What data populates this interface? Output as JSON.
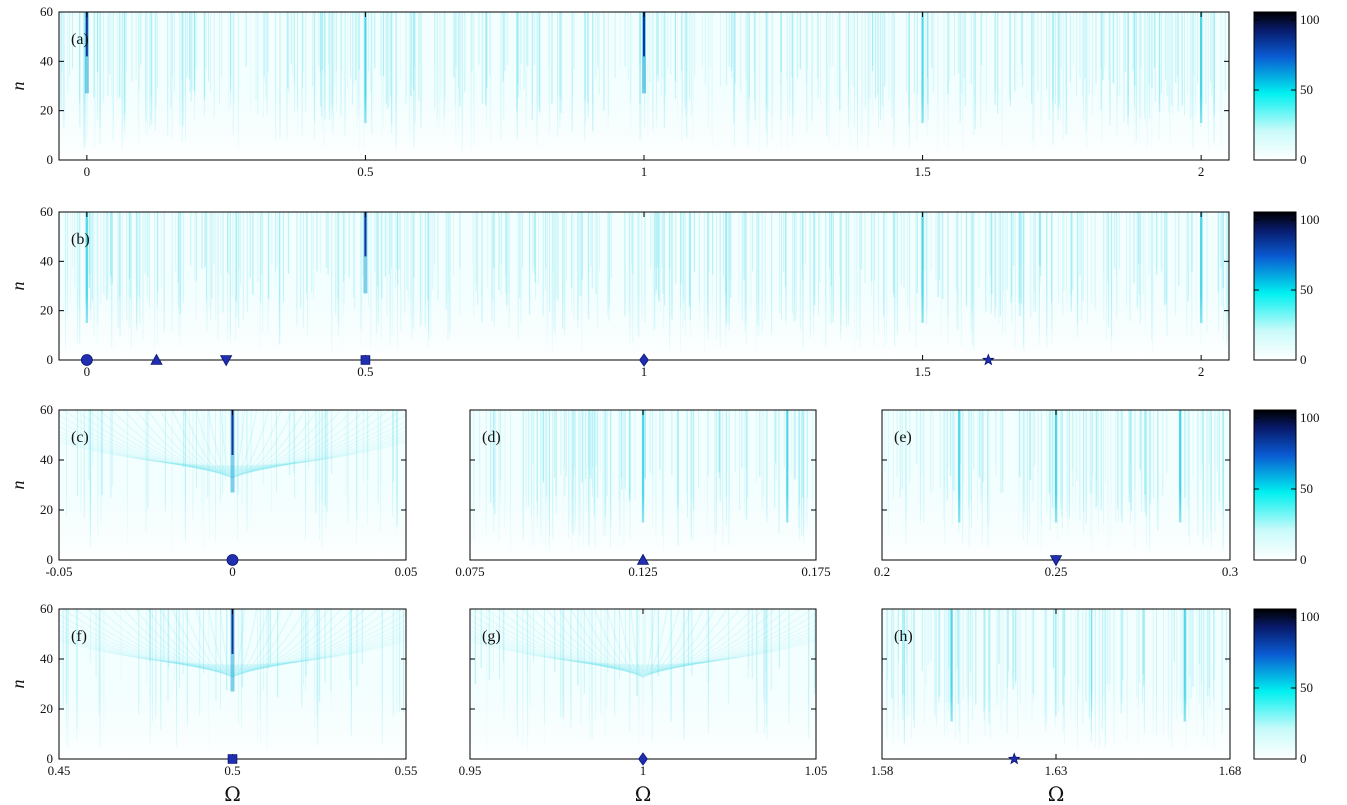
{
  "chart_data": {
    "type": "heatmap",
    "colormap": {
      "stops": [
        "#ffffff",
        "#00f0f0",
        "#0a3cc8",
        "#000000"
      ],
      "ticks": [
        "0",
        "50",
        "100"
      ]
    },
    "panels": [
      {
        "label": "(a)",
        "xlim": [
          -0.05,
          2.05
        ],
        "ylim": [
          0,
          60
        ],
        "xticks": [
          0,
          0.5,
          1,
          1.5,
          2
        ],
        "xtick_labels": [
          "0",
          "0.5",
          "1",
          "1.5",
          "2"
        ],
        "yticks": [
          0,
          20,
          40,
          60
        ],
        "ytick_labels": [
          "0",
          "20",
          "40",
          "60"
        ],
        "ylabel": "n",
        "xlabel": "",
        "dark_lines": [
          0,
          1
        ],
        "cyan_lines": [
          0.5,
          1.5,
          2
        ],
        "dense_lines": true,
        "markers": []
      },
      {
        "label": "(b)",
        "xlim": [
          -0.05,
          2.05
        ],
        "ylim": [
          0,
          60
        ],
        "xticks": [
          0,
          0.5,
          1,
          1.5,
          2
        ],
        "xtick_labels": [
          "0",
          "0.5",
          "1",
          "1.5",
          "2"
        ],
        "yticks": [
          0,
          20,
          40,
          60
        ],
        "ytick_labels": [
          "0",
          "20",
          "40",
          "60"
        ],
        "ylabel": "n",
        "xlabel": "",
        "dark_lines": [
          0.5
        ],
        "cyan_lines": [
          0,
          2,
          1.5
        ],
        "dense_lines": true,
        "markers": [
          {
            "shape": "circle",
            "x": 0
          },
          {
            "shape": "triangle-up",
            "x": 0.125
          },
          {
            "shape": "triangle-down",
            "x": 0.25
          },
          {
            "shape": "square",
            "x": 0.5
          },
          {
            "shape": "diamond",
            "x": 1
          },
          {
            "shape": "star",
            "x": 1.618
          }
        ]
      },
      {
        "label": "(c)",
        "xlim": [
          -0.05,
          0.05
        ],
        "ylim": [
          0,
          60
        ],
        "xticks": [
          -0.05,
          0,
          0.05
        ],
        "xtick_labels": [
          "-0.05",
          "0",
          "0.05"
        ],
        "yticks": [
          0,
          20,
          40,
          60
        ],
        "ytick_labels": [
          "0",
          "20",
          "40",
          "60"
        ],
        "ylabel": "n",
        "xlabel": "",
        "dark_lines": [
          0
        ],
        "cyan_lines": [],
        "dense_lines": false,
        "markers": [
          {
            "shape": "circle",
            "x": 0
          }
        ]
      },
      {
        "label": "(d)",
        "xlim": [
          0.075,
          0.175
        ],
        "ylim": [
          0,
          60
        ],
        "xticks": [
          0.075,
          0.125,
          0.175
        ],
        "xtick_labels": [
          "0.075",
          "0.125",
          "0.175"
        ],
        "yticks": [
          20,
          40,
          60
        ],
        "ytick_labels": [],
        "ylabel": "",
        "xlabel": "",
        "dark_lines": [],
        "cyan_lines": [
          0.125,
          0.1667
        ],
        "dense_lines": true,
        "markers": [
          {
            "shape": "triangle-up",
            "x": 0.125
          }
        ]
      },
      {
        "label": "(e)",
        "xlim": [
          0.2,
          0.3
        ],
        "ylim": [
          0,
          60
        ],
        "xticks": [
          0.2,
          0.25,
          0.3
        ],
        "xtick_labels": [
          "0.2",
          "0.25",
          "0.3"
        ],
        "yticks": [
          20,
          40,
          60
        ],
        "ytick_labels": [],
        "ylabel": "",
        "xlabel": "",
        "dark_lines": [],
        "cyan_lines": [
          0.25,
          0.2222,
          0.2857
        ],
        "dense_lines": true,
        "markers": [
          {
            "shape": "triangle-down",
            "x": 0.25
          }
        ]
      },
      {
        "label": "(f)",
        "xlim": [
          0.45,
          0.55
        ],
        "ylim": [
          0,
          60
        ],
        "xticks": [
          0.45,
          0.5,
          0.55
        ],
        "xtick_labels": [
          "0.45",
          "0.5",
          "0.55"
        ],
        "yticks": [
          0,
          20,
          40,
          60
        ],
        "ytick_labels": [
          "0",
          "20",
          "40",
          "60"
        ],
        "ylabel": "n",
        "xlabel": "Ω",
        "dark_lines": [
          0.5
        ],
        "cyan_lines": [],
        "dense_lines": false,
        "markers": [
          {
            "shape": "square",
            "x": 0.5
          }
        ]
      },
      {
        "label": "(g)",
        "xlim": [
          0.95,
          1.05
        ],
        "ylim": [
          0,
          60
        ],
        "xticks": [
          0.95,
          1,
          1.05
        ],
        "xtick_labels": [
          "0.95",
          "1",
          "1.05"
        ],
        "yticks": [
          20,
          40,
          60
        ],
        "ytick_labels": [],
        "ylabel": "",
        "xlabel": "Ω",
        "dark_lines": [],
        "cyan_lines": [],
        "dense_lines": false,
        "markers": [
          {
            "shape": "diamond",
            "x": 1
          }
        ]
      },
      {
        "label": "(h)",
        "xlim": [
          1.58,
          1.68
        ],
        "ylim": [
          0,
          60
        ],
        "xticks": [
          1.58,
          1.63,
          1.68
        ],
        "xtick_labels": [
          "1.58",
          "1.63",
          "1.68"
        ],
        "yticks": [
          20,
          40,
          60
        ],
        "ytick_labels": [],
        "ylabel": "",
        "xlabel": "Ω",
        "dark_lines": [],
        "cyan_lines": [
          1.6,
          1.667
        ],
        "dense_lines": true,
        "markers": [
          {
            "shape": "star",
            "x": 1.618
          }
        ]
      }
    ]
  }
}
